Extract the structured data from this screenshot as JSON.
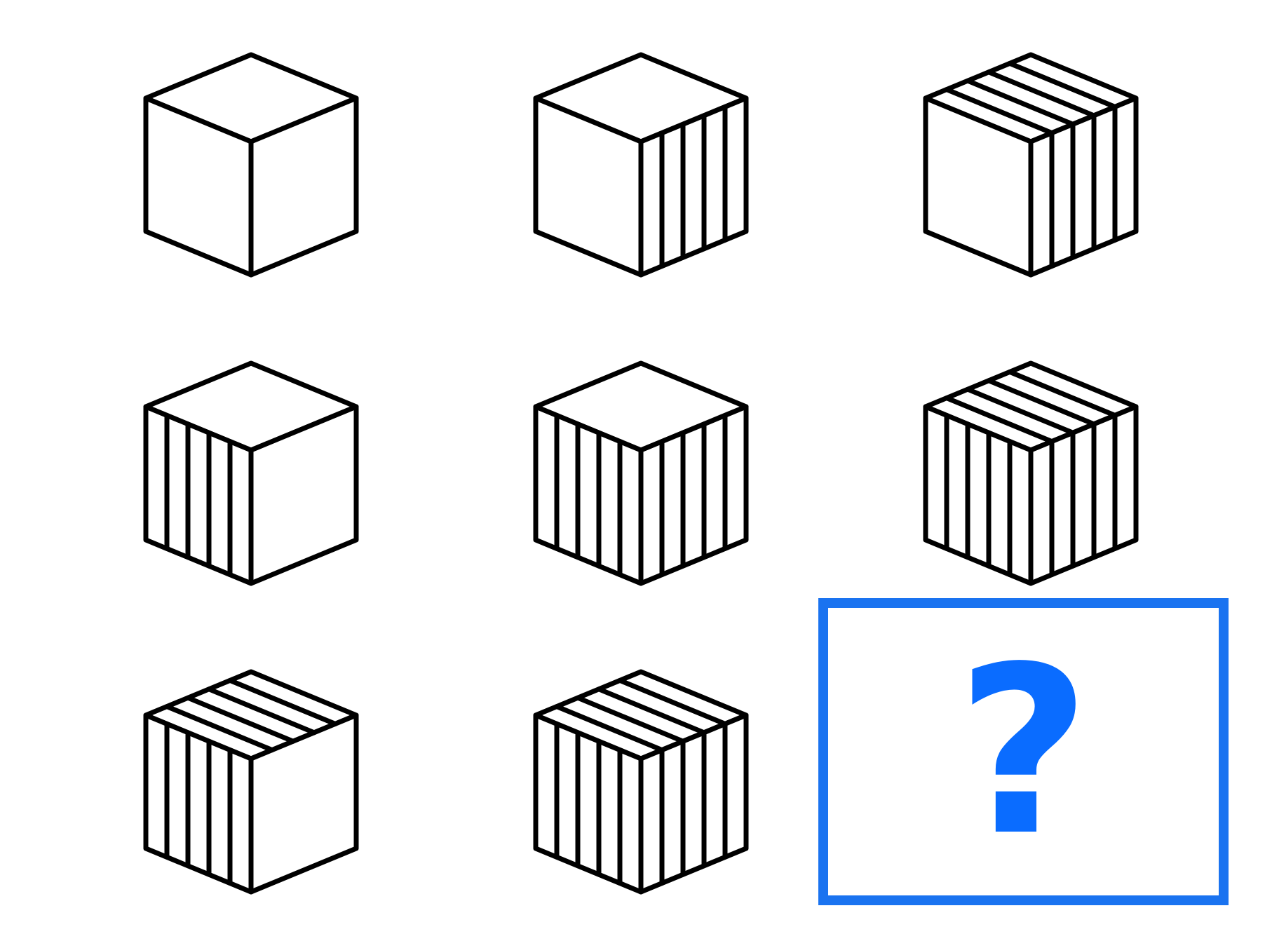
{
  "puzzle": {
    "rows": 3,
    "cols": 3,
    "cells": [
      {
        "id": "cube-1",
        "front_stripes": 0,
        "side_stripes": 0,
        "top_stripes": 0
      },
      {
        "id": "cube-2",
        "front_stripes": 0,
        "side_stripes": 4,
        "top_stripes": 0
      },
      {
        "id": "cube-3",
        "front_stripes": 0,
        "side_stripes": 4,
        "top_stripes": 4
      },
      {
        "id": "cube-4",
        "front_stripes": 4,
        "side_stripes": 0,
        "top_stripes": 0
      },
      {
        "id": "cube-5",
        "front_stripes": 4,
        "side_stripes": 4,
        "top_stripes": 0
      },
      {
        "id": "cube-6",
        "front_stripes": 4,
        "side_stripes": 4,
        "top_stripes": 4
      },
      {
        "id": "cube-7",
        "front_stripes": 4,
        "side_stripes": 0,
        "top_stripes": 4
      },
      {
        "id": "cube-8",
        "front_stripes": 4,
        "side_stripes": 4,
        "top_stripes": 4
      },
      {
        "id": "answer-cell",
        "missing": true
      }
    ],
    "answer_box": {
      "symbol": "?",
      "border_color": "#1a73f0",
      "symbol_color": "#0a6cff"
    },
    "stroke_color": "#000000"
  }
}
